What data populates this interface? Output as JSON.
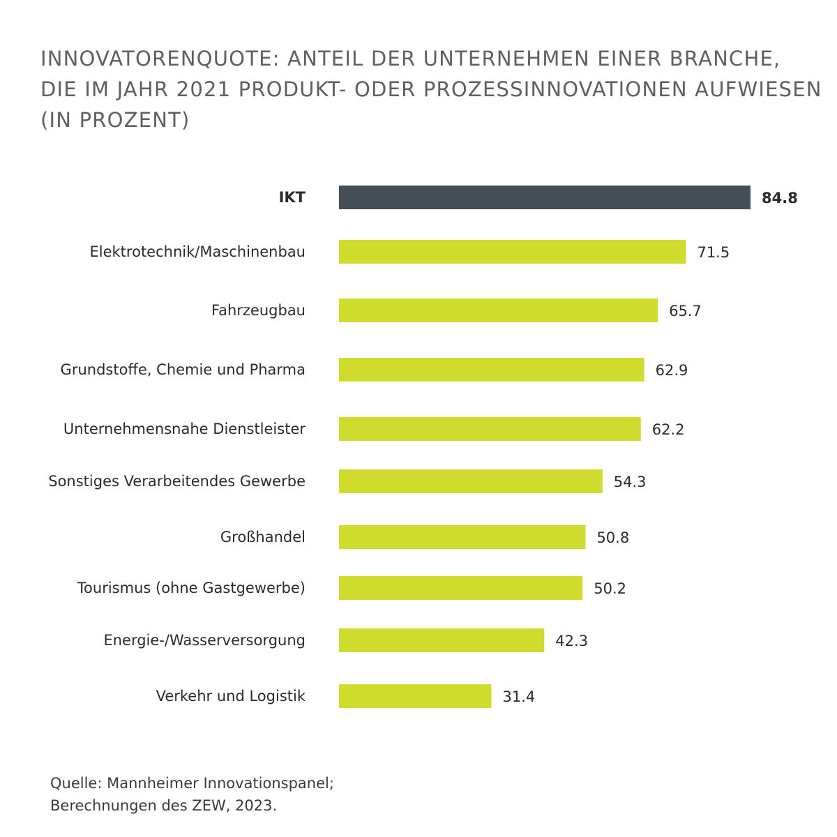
{
  "chart_data": {
    "type": "bar",
    "orientation": "horizontal",
    "title_lines": [
      "INNOVATORENQUOTE: ANTEIL DER UNTERNEHMEN EINER BRANCHE,",
      "DIE IM JAHR 2021 PRODUKT- ODER PROZESSINNOVATIONEN AUFWIESEN",
      "(IN PROZENT)"
    ],
    "categories": [
      "IKT",
      "Elektrotechnik/Maschinenbau",
      "Fahrzeugbau",
      "Grundstoffe, Chemie und Pharma",
      "Unternehmensnahe Dienstleister",
      "Sonstiges Verarbeitendes Gewerbe",
      "Großhandel",
      "Tourismus (ohne Gastgewerbe)",
      "Energie-/Wasserversorgung",
      "Verkehr und Logistik"
    ],
    "values": [
      84.8,
      71.5,
      65.7,
      62.9,
      62.2,
      54.3,
      50.8,
      50.2,
      42.3,
      31.4
    ],
    "value_labels": [
      "84.8",
      "71.5",
      "65.7",
      "62.9",
      "62.2",
      "54.3",
      "50.8",
      "50.2",
      "42.3",
      "31.4"
    ],
    "highlight_index": 0,
    "colors": {
      "bar": "#cfdc2e",
      "highlight": "#444e57",
      "label": "#2b2b2b",
      "title": "#5f5f5f"
    },
    "xlim": [
      0,
      84.8
    ],
    "grid": false,
    "legend": "none"
  },
  "source": {
    "line1": "Quelle: Mannheimer Innovationspanel;",
    "line2": "Berechnungen des ZEW, 2023."
  }
}
